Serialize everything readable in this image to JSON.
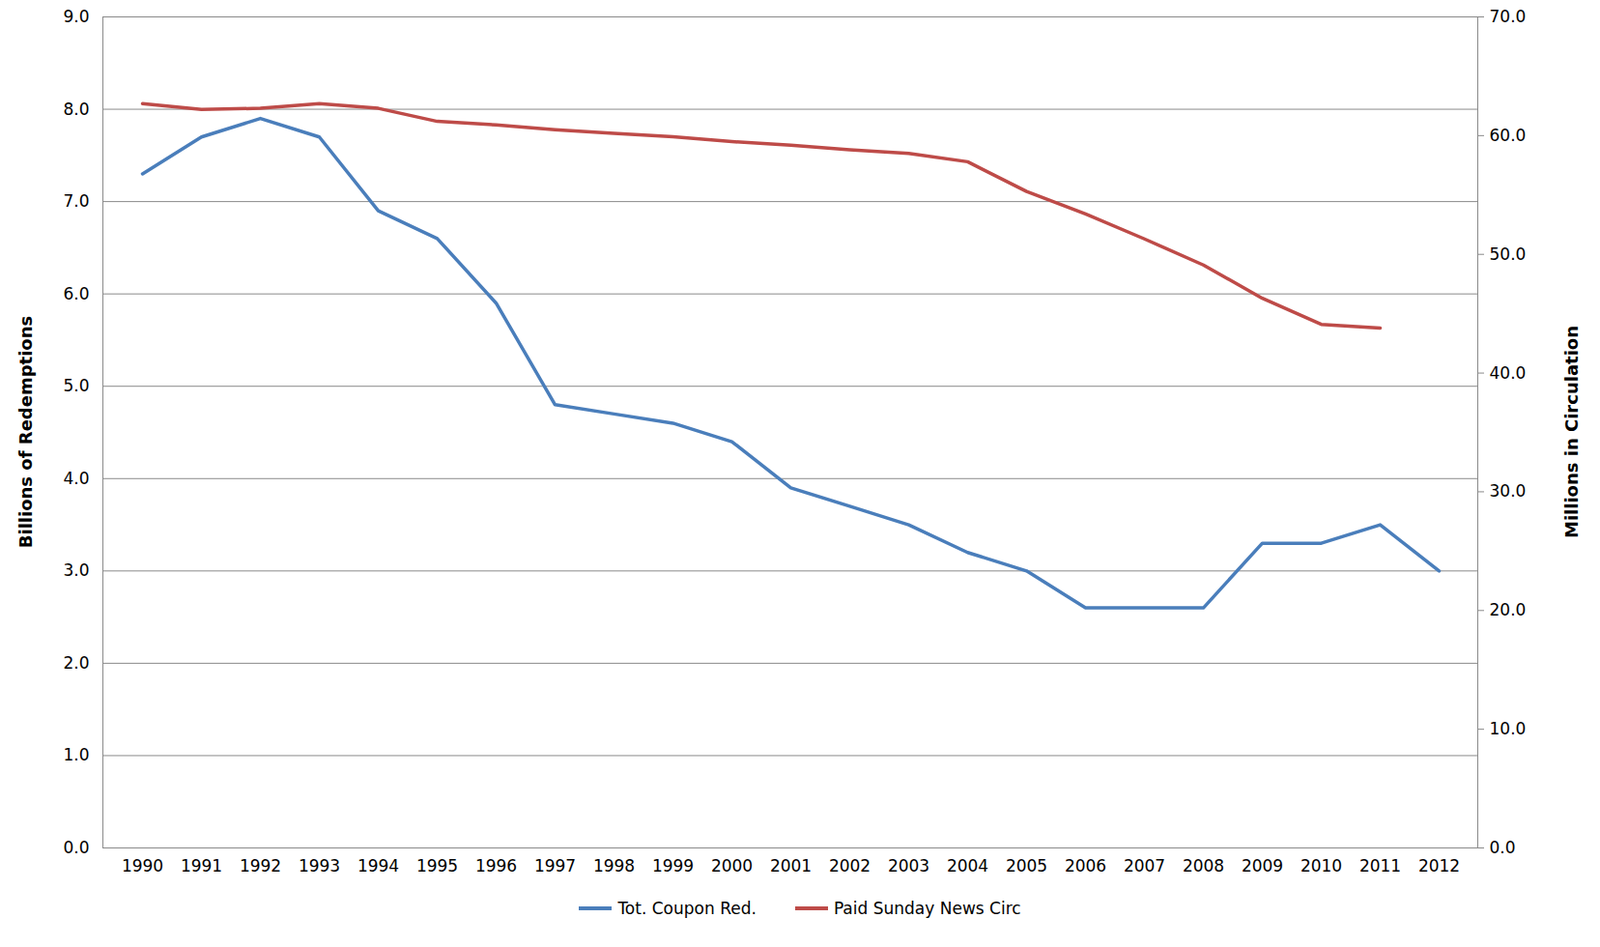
{
  "chart_data": {
    "type": "line",
    "categories": [
      1990,
      1991,
      1992,
      1993,
      1994,
      1995,
      1996,
      1997,
      1998,
      1999,
      2000,
      2001,
      2002,
      2003,
      2004,
      2005,
      2006,
      2007,
      2008,
      2009,
      2010,
      2011,
      2012
    ],
    "series": [
      {
        "name": "Tot. Coupon Red.",
        "color": "#4a7ebb",
        "values": [
          7.3,
          7.7,
          7.9,
          7.7,
          6.9,
          6.6,
          5.9,
          4.8,
          4.7,
          4.6,
          4.4,
          3.9,
          3.7,
          3.5,
          3.2,
          3.0,
          2.6,
          2.6,
          2.6,
          3.3,
          3.3,
          3.5,
          3.0
        ]
      },
      {
        "name": "Paid Sunday News Circ",
        "color": "#be4b48",
        "axis": "y2",
        "values": [
          62.7,
          62.2,
          62.3,
          62.7,
          62.3,
          61.2,
          60.9,
          60.5,
          60.2,
          59.9,
          59.5,
          59.2,
          58.8,
          58.5,
          57.8,
          55.3,
          53.4,
          51.3,
          49.1,
          46.3,
          44.1,
          43.8,
          null
        ]
      }
    ],
    "ylabel": "Billions of Redemptions",
    "y2label": "Millions in Circulation",
    "ylim": [
      0,
      9
    ],
    "yticks": [
      {
        "value": 0,
        "label": "0.0"
      },
      {
        "value": 1,
        "label": "1.0"
      },
      {
        "value": 2,
        "label": "2.0"
      },
      {
        "value": 3,
        "label": "3.0"
      },
      {
        "value": 4,
        "label": "4.0"
      },
      {
        "value": 5,
        "label": "5.0"
      },
      {
        "value": 6,
        "label": "6.0"
      },
      {
        "value": 7,
        "label": "7.0"
      },
      {
        "value": 8,
        "label": "8.0"
      },
      {
        "value": 9,
        "label": "9.0"
      }
    ],
    "y2lim": [
      0,
      70
    ],
    "y2ticks": [
      {
        "value": 0,
        "label": "0.0"
      },
      {
        "value": 10,
        "label": "10.0"
      },
      {
        "value": 20,
        "label": "20.0"
      },
      {
        "value": 30,
        "label": "30.0"
      },
      {
        "value": 40,
        "label": "40.0"
      },
      {
        "value": 50,
        "label": "50.0"
      },
      {
        "value": 60,
        "label": "60.0"
      },
      {
        "value": 70,
        "label": "70.0"
      }
    ],
    "grid": true,
    "legend": "bottom"
  }
}
